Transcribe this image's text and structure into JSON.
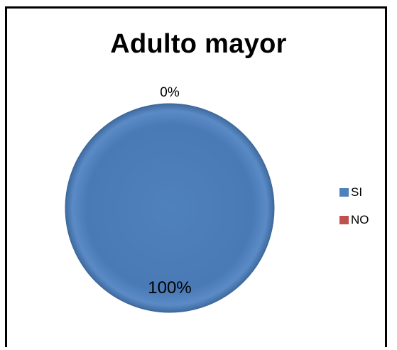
{
  "chart_data": {
    "type": "pie",
    "title": "Adulto mayor",
    "categories": [
      "SI",
      "NO"
    ],
    "values": [
      100,
      0
    ],
    "data_labels": [
      "100%",
      "0%"
    ],
    "colors": [
      "#4F81BD",
      "#C0504D"
    ],
    "legend_position": "right"
  }
}
